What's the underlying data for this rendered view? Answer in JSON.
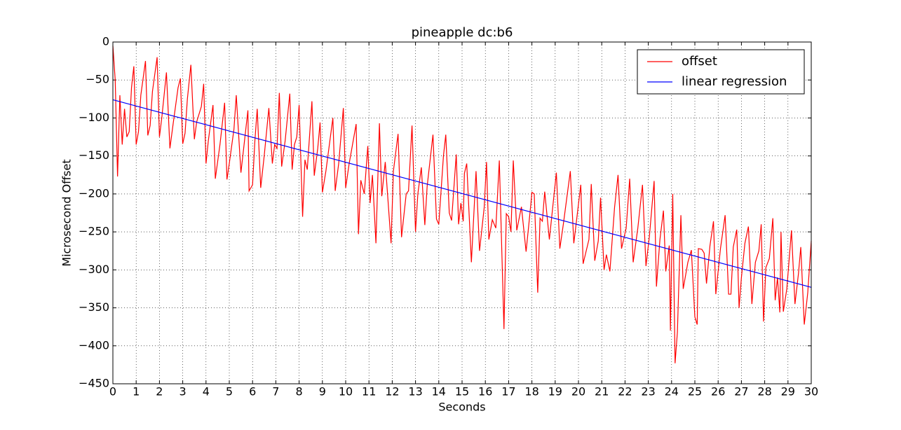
{
  "chart_data": {
    "type": "line",
    "title": "pineapple dc:b6",
    "xlabel": "Seconds",
    "ylabel": "Microsecond Offset",
    "xlim": [
      0,
      30
    ],
    "ylim": [
      -450,
      0
    ],
    "xticks": [
      0,
      1,
      2,
      3,
      4,
      5,
      6,
      7,
      8,
      9,
      10,
      11,
      12,
      13,
      14,
      15,
      16,
      17,
      18,
      19,
      20,
      21,
      22,
      23,
      24,
      25,
      26,
      27,
      28,
      29,
      30
    ],
    "yticks": [
      {
        "value": -450,
        "label": "−450"
      },
      {
        "value": -400,
        "label": "−400"
      },
      {
        "value": -350,
        "label": "−350"
      },
      {
        "value": -300,
        "label": "−300"
      },
      {
        "value": -250,
        "label": "−250"
      },
      {
        "value": -200,
        "label": "−200"
      },
      {
        "value": -150,
        "label": "−150"
      },
      {
        "value": -100,
        "label": "−100"
      },
      {
        "value": -50,
        "label": "−50"
      },
      0
    ],
    "grid": true,
    "legend": "upper right",
    "series": [
      {
        "name": "offset",
        "color": "#ff0000",
        "x": [
          0,
          0.1,
          0.2,
          0.3,
          0.4,
          0.5,
          0.6,
          0.7,
          0.8,
          0.9,
          1.0,
          1.1,
          1.2,
          1.4,
          1.5,
          1.6,
          1.7,
          1.9,
          2.0,
          2.1,
          2.3,
          2.45,
          2.6,
          2.8,
          2.9,
          3.0,
          3.1,
          3.2,
          3.35,
          3.5,
          3.6,
          3.8,
          3.9,
          4.0,
          4.1,
          4.3,
          4.4,
          4.6,
          4.8,
          4.9,
          5.0,
          5.2,
          5.3,
          5.5,
          5.6,
          5.8,
          5.85,
          6.0,
          6.1,
          6.2,
          6.35,
          6.5,
          6.7,
          6.85,
          6.95,
          7.05,
          7.15,
          7.25,
          7.4,
          7.6,
          7.7,
          7.8,
          7.9,
          8.0,
          8.15,
          8.25,
          8.35,
          8.55,
          8.65,
          8.8,
          8.9,
          9.0,
          9.15,
          9.45,
          9.55,
          9.7,
          9.9,
          10.0,
          10.15,
          10.45,
          10.55,
          10.65,
          10.8,
          10.95,
          11.05,
          11.15,
          11.3,
          11.45,
          11.55,
          11.7,
          11.95,
          12.05,
          12.25,
          12.4,
          12.6,
          12.7,
          12.85,
          13.0,
          13.1,
          13.25,
          13.4,
          13.5,
          13.75,
          13.9,
          14.0,
          14.2,
          14.3,
          14.45,
          14.55,
          14.75,
          14.85,
          14.95,
          15.05,
          15.1,
          15.2,
          15.4,
          15.6,
          15.75,
          15.95,
          16.05,
          16.15,
          16.3,
          16.45,
          16.6,
          16.8,
          16.9,
          17.0,
          17.1,
          17.2,
          17.35,
          17.55,
          17.75,
          17.95,
          18.0,
          18.1,
          18.25,
          18.35,
          18.45,
          18.55,
          18.75,
          19.05,
          19.2,
          19.35,
          19.65,
          19.8,
          20.1,
          20.2,
          20.45,
          20.55,
          20.7,
          20.85,
          20.95,
          21.1,
          21.2,
          21.35,
          21.55,
          21.7,
          21.85,
          22.05,
          22.2,
          22.35,
          22.55,
          22.75,
          22.9,
          23.05,
          23.25,
          23.35,
          23.5,
          23.65,
          23.75,
          23.9,
          23.95,
          24.05,
          24.15,
          24.25,
          24.4,
          24.5,
          24.7,
          24.85,
          25.0,
          25.1,
          25.15,
          25.3,
          25.4,
          25.5,
          25.65,
          25.8,
          25.9,
          26.1,
          26.3,
          26.45,
          26.55,
          26.65,
          26.8,
          26.9,
          27.0,
          27.15,
          27.3,
          27.45,
          27.6,
          27.75,
          27.85,
          27.95,
          28.05,
          28.2,
          28.35,
          28.45,
          28.55,
          28.65,
          28.7,
          28.8,
          28.95,
          29.15,
          29.3,
          29.45,
          29.55,
          29.7,
          29.85,
          30.0
        ],
        "values": [
          -5,
          -50,
          -177,
          -70,
          -135,
          -88,
          -125,
          -118,
          -60,
          -32,
          -135,
          -118,
          -70,
          -25,
          -123,
          -110,
          -65,
          -20,
          -125,
          -100,
          -40,
          -140,
          -105,
          -60,
          -48,
          -134,
          -120,
          -75,
          -30,
          -128,
          -105,
          -85,
          -55,
          -160,
          -130,
          -83,
          -180,
          -135,
          -80,
          -181,
          -160,
          -115,
          -70,
          -172,
          -145,
          -90,
          -196,
          -188,
          -130,
          -88,
          -192,
          -150,
          -87,
          -160,
          -135,
          -140,
          -67,
          -164,
          -130,
          -68,
          -168,
          -135,
          -125,
          -83,
          -230,
          -155,
          -168,
          -78,
          -176,
          -140,
          -106,
          -198,
          -170,
          -100,
          -196,
          -160,
          -87,
          -192,
          -160,
          -108,
          -253,
          -182,
          -200,
          -137,
          -212,
          -175,
          -265,
          -107,
          -203,
          -158,
          -265,
          -170,
          -121,
          -257,
          -200,
          -196,
          -110,
          -250,
          -200,
          -165,
          -241,
          -190,
          -122,
          -233,
          -240,
          -150,
          -122,
          -225,
          -235,
          -148,
          -240,
          -212,
          -236,
          -173,
          -160,
          -290,
          -170,
          -275,
          -218,
          -158,
          -260,
          -234,
          -245,
          -156,
          -378,
          -226,
          -230,
          -250,
          -156,
          -248,
          -217,
          -276,
          -215,
          -198,
          -200,
          -330,
          -232,
          -236,
          -197,
          -260,
          -172,
          -272,
          -240,
          -170,
          -265,
          -188,
          -292,
          -260,
          -187,
          -288,
          -262,
          -205,
          -300,
          -280,
          -302,
          -218,
          -175,
          -272,
          -245,
          -180,
          -290,
          -245,
          -188,
          -295,
          -255,
          -183,
          -322,
          -260,
          -222,
          -302,
          -268,
          -380,
          -200,
          -423,
          -382,
          -228,
          -325,
          -290,
          -274,
          -362,
          -372,
          -272,
          -273,
          -278,
          -318,
          -268,
          -236,
          -332,
          -272,
          -228,
          -332,
          -332,
          -270,
          -247,
          -350,
          -310,
          -265,
          -243,
          -345,
          -290,
          -275,
          -240,
          -368,
          -297,
          -285,
          -232,
          -340,
          -310,
          -356,
          -250,
          -355,
          -325,
          -248,
          -345,
          -305,
          -270,
          -372,
          -330,
          -262
        ]
      },
      {
        "name": "linear regression",
        "color": "#0000ff",
        "x": [
          0,
          30
        ],
        "values": [
          -76,
          -323
        ]
      }
    ]
  }
}
